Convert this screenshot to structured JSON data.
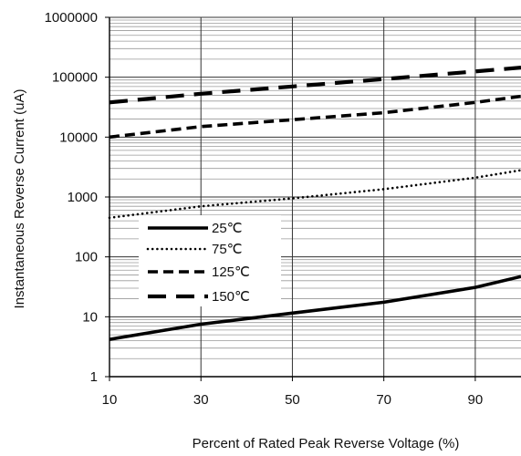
{
  "chart_data": {
    "type": "line",
    "xlabel": "Percent of Rated Peak Reverse Voltage (%)",
    "ylabel": "Instantaneous Reverse Current (uA)",
    "x_scale": "linear",
    "y_scale": "log",
    "xlim": [
      10,
      100
    ],
    "ylim": [
      1,
      1000000
    ],
    "x_ticks": [
      "10",
      "30",
      "50",
      "70",
      "90"
    ],
    "y_ticks": [
      "1",
      "10",
      "100",
      "1000",
      "10000",
      "100000",
      "1000000"
    ],
    "grid": true,
    "legend_position": "lower-left",
    "series": [
      {
        "name": "25℃",
        "style": "solid",
        "x": [
          10,
          30,
          50,
          70,
          90,
          100
        ],
        "y": [
          4.2,
          7.5,
          11.5,
          17.5,
          31,
          47
        ]
      },
      {
        "name": "75℃",
        "style": "dotted",
        "x": [
          10,
          30,
          50,
          70,
          90,
          100
        ],
        "y": [
          450,
          700,
          950,
          1350,
          2100,
          2800
        ]
      },
      {
        "name": "125℃",
        "style": "dashed",
        "x": [
          10,
          30,
          50,
          70,
          90,
          100
        ],
        "y": [
          10000,
          15000,
          19500,
          25500,
          38000,
          48000
        ]
      },
      {
        "name": "150℃",
        "style": "long-dash",
        "x": [
          10,
          30,
          50,
          70,
          90,
          100
        ],
        "y": [
          38000,
          53000,
          70000,
          93000,
          125000,
          145000
        ]
      }
    ]
  }
}
